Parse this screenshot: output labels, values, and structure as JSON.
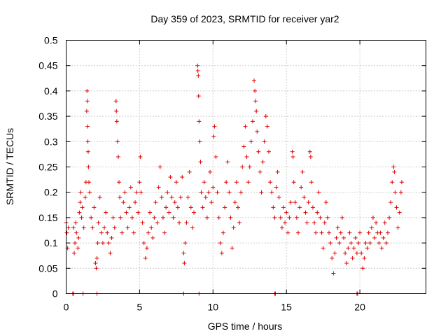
{
  "chart_data": {
    "type": "scatter",
    "title": "Day 359 of 2023, SRMTID for receiver yar2",
    "xlabel": "GPS time / hours",
    "ylabel": "SRMTID / TECUs",
    "xlim": [
      0,
      24.5
    ],
    "ylim": [
      0,
      0.5
    ],
    "x_ticks": [
      0,
      5,
      10,
      15,
      20
    ],
    "x_tick_labels": [
      "0",
      "5",
      "10",
      "15",
      "20"
    ],
    "y_ticks": [
      0,
      0.05,
      0.1,
      0.15,
      0.2,
      0.25,
      0.3,
      0.35,
      0.4,
      0.45,
      0.5
    ],
    "y_tick_labels": [
      "0",
      "0.05",
      "0.1",
      "0.15",
      "0.2",
      "0.25",
      "0.3",
      "0.35",
      "0.4",
      "0.45",
      "0.5"
    ],
    "grid": true,
    "marker": "+",
    "color": "#e00000",
    "series": [
      {
        "name": "yar2",
        "points": [
          [
            0.0,
            0.14
          ],
          [
            0.05,
            0.12
          ],
          [
            0.1,
            0.09
          ],
          [
            0.15,
            0.13
          ],
          [
            0.5,
            0.13
          ],
          [
            0.55,
            0.08
          ],
          [
            0.6,
            0.1
          ],
          [
            0.65,
            0.14
          ],
          [
            0.7,
            0.12
          ],
          [
            0.8,
            0.09
          ],
          [
            0.85,
            0.11
          ],
          [
            0.9,
            0.16
          ],
          [
            0.95,
            0.18
          ],
          [
            1.0,
            0.2
          ],
          [
            1.05,
            0.15
          ],
          [
            1.1,
            0.17
          ],
          [
            1.2,
            0.13
          ],
          [
            1.3,
            0.19
          ],
          [
            1.35,
            0.22
          ],
          [
            1.4,
            0.36
          ],
          [
            1.42,
            0.4
          ],
          [
            1.44,
            0.38
          ],
          [
            1.46,
            0.33
          ],
          [
            1.48,
            0.3
          ],
          [
            1.5,
            0.28
          ],
          [
            1.52,
            0.25
          ],
          [
            1.55,
            0.22
          ],
          [
            1.6,
            0.2
          ],
          [
            1.7,
            0.15
          ],
          [
            1.8,
            0.13
          ],
          [
            1.9,
            0.17
          ],
          [
            2.0,
            0.06
          ],
          [
            2.05,
            0.05
          ],
          [
            2.1,
            0.07
          ],
          [
            2.15,
            0.1
          ],
          [
            2.2,
            0.14
          ],
          [
            2.3,
            0.19
          ],
          [
            2.4,
            0.12
          ],
          [
            2.5,
            0.1
          ],
          [
            2.6,
            0.13
          ],
          [
            2.7,
            0.16
          ],
          [
            2.8,
            0.12
          ],
          [
            2.9,
            0.1
          ],
          [
            3.0,
            0.08
          ],
          [
            3.1,
            0.11
          ],
          [
            3.2,
            0.15
          ],
          [
            3.3,
            0.13
          ],
          [
            3.4,
            0.38
          ],
          [
            3.42,
            0.36
          ],
          [
            3.45,
            0.34
          ],
          [
            3.5,
            0.3
          ],
          [
            3.55,
            0.27
          ],
          [
            3.6,
            0.22
          ],
          [
            3.65,
            0.19
          ],
          [
            3.7,
            0.15
          ],
          [
            3.8,
            0.12
          ],
          [
            3.9,
            0.18
          ],
          [
            4.0,
            0.2
          ],
          [
            4.1,
            0.16
          ],
          [
            4.2,
            0.13
          ],
          [
            4.3,
            0.17
          ],
          [
            4.4,
            0.21
          ],
          [
            4.5,
            0.15
          ],
          [
            4.6,
            0.12
          ],
          [
            4.7,
            0.18
          ],
          [
            4.8,
            0.2
          ],
          [
            4.9,
            0.16
          ],
          [
            5.0,
            0.22
          ],
          [
            5.05,
            0.27
          ],
          [
            5.1,
            0.2
          ],
          [
            5.2,
            0.14
          ],
          [
            5.3,
            0.1
          ],
          [
            5.4,
            0.07
          ],
          [
            5.5,
            0.09
          ],
          [
            5.6,
            0.12
          ],
          [
            5.7,
            0.16
          ],
          [
            5.8,
            0.13
          ],
          [
            5.9,
            0.11
          ],
          [
            6.0,
            0.15
          ],
          [
            6.1,
            0.18
          ],
          [
            6.2,
            0.14
          ],
          [
            6.3,
            0.21
          ],
          [
            6.4,
            0.25
          ],
          [
            6.5,
            0.19
          ],
          [
            6.6,
            0.15
          ],
          [
            6.7,
            0.12
          ],
          [
            6.8,
            0.17
          ],
          [
            6.9,
            0.2
          ],
          [
            7.0,
            0.16
          ],
          [
            7.1,
            0.23
          ],
          [
            7.2,
            0.19
          ],
          [
            7.3,
            0.15
          ],
          [
            7.4,
            0.18
          ],
          [
            7.5,
            0.22
          ],
          [
            7.6,
            0.17
          ],
          [
            7.7,
            0.14
          ],
          [
            7.8,
            0.19
          ],
          [
            7.9,
            0.23
          ],
          [
            8.0,
            0.08
          ],
          [
            8.05,
            0.06
          ],
          [
            8.1,
            0.1
          ],
          [
            8.2,
            0.14
          ],
          [
            8.3,
            0.19
          ],
          [
            8.4,
            0.24
          ],
          [
            8.5,
            0.17
          ],
          [
            8.6,
            0.13
          ],
          [
            8.7,
            0.16
          ],
          [
            8.95,
            0.45
          ],
          [
            8.97,
            0.44
          ],
          [
            9.0,
            0.43
          ],
          [
            9.02,
            0.39
          ],
          [
            9.05,
            0.34
          ],
          [
            9.1,
            0.3
          ],
          [
            9.15,
            0.26
          ],
          [
            9.2,
            0.2
          ],
          [
            9.3,
            0.17
          ],
          [
            9.4,
            0.22
          ],
          [
            9.5,
            0.19
          ],
          [
            9.6,
            0.15
          ],
          [
            9.7,
            0.2
          ],
          [
            9.8,
            0.24
          ],
          [
            9.9,
            0.18
          ],
          [
            10.0,
            0.21
          ],
          [
            10.05,
            0.31
          ],
          [
            10.1,
            0.33
          ],
          [
            10.2,
            0.27
          ],
          [
            10.3,
            0.2
          ],
          [
            10.4,
            0.15
          ],
          [
            10.5,
            0.1
          ],
          [
            10.6,
            0.08
          ],
          [
            10.7,
            0.12
          ],
          [
            10.8,
            0.17
          ],
          [
            10.9,
            0.22
          ],
          [
            11.0,
            0.26
          ],
          [
            11.1,
            0.2
          ],
          [
            11.2,
            0.15
          ],
          [
            11.3,
            0.09
          ],
          [
            11.4,
            0.13
          ],
          [
            11.5,
            0.18
          ],
          [
            11.6,
            0.22
          ],
          [
            11.7,
            0.17
          ],
          [
            11.8,
            0.14
          ],
          [
            11.9,
            0.2
          ],
          [
            12.0,
            0.25
          ],
          [
            12.1,
            0.29
          ],
          [
            12.2,
            0.33
          ],
          [
            12.3,
            0.27
          ],
          [
            12.4,
            0.22
          ],
          [
            12.5,
            0.25
          ],
          [
            12.6,
            0.3
          ],
          [
            12.7,
            0.34
          ],
          [
            12.8,
            0.42
          ],
          [
            12.85,
            0.4
          ],
          [
            12.9,
            0.38
          ],
          [
            12.95,
            0.36
          ],
          [
            13.0,
            0.32
          ],
          [
            13.1,
            0.28
          ],
          [
            13.2,
            0.24
          ],
          [
            13.3,
            0.2
          ],
          [
            13.4,
            0.26
          ],
          [
            13.5,
            0.3
          ],
          [
            13.6,
            0.35
          ],
          [
            13.7,
            0.33
          ],
          [
            13.8,
            0.28
          ],
          [
            13.9,
            0.22
          ],
          [
            14.0,
            0.2
          ],
          [
            14.1,
            0.17
          ],
          [
            14.2,
            0.15
          ],
          [
            14.3,
            0.21
          ],
          [
            14.4,
            0.24
          ],
          [
            14.5,
            0.19
          ],
          [
            14.6,
            0.15
          ],
          [
            14.7,
            0.13
          ],
          [
            14.8,
            0.17
          ],
          [
            14.9,
            0.14
          ],
          [
            15.0,
            0.16
          ],
          [
            15.1,
            0.12
          ],
          [
            15.2,
            0.15
          ],
          [
            15.3,
            0.18
          ],
          [
            15.4,
            0.28
          ],
          [
            15.45,
            0.27
          ],
          [
            15.5,
            0.22
          ],
          [
            15.6,
            0.18
          ],
          [
            15.7,
            0.15
          ],
          [
            15.8,
            0.12
          ],
          [
            15.9,
            0.17
          ],
          [
            16.0,
            0.21
          ],
          [
            16.1,
            0.24
          ],
          [
            16.2,
            0.19
          ],
          [
            16.3,
            0.16
          ],
          [
            16.4,
            0.14
          ],
          [
            16.5,
            0.18
          ],
          [
            16.6,
            0.28
          ],
          [
            16.65,
            0.27
          ],
          [
            16.7,
            0.22
          ],
          [
            16.8,
            0.17
          ],
          [
            16.9,
            0.14
          ],
          [
            17.0,
            0.12
          ],
          [
            17.1,
            0.16
          ],
          [
            17.2,
            0.2
          ],
          [
            17.3,
            0.15
          ],
          [
            17.4,
            0.12
          ],
          [
            17.5,
            0.09
          ],
          [
            17.6,
            0.14
          ],
          [
            17.7,
            0.18
          ],
          [
            17.8,
            0.15
          ],
          [
            17.9,
            0.12
          ],
          [
            18.0,
            0.1
          ],
          [
            18.1,
            0.07
          ],
          [
            18.2,
            0.04
          ],
          [
            18.3,
            0.08
          ],
          [
            18.4,
            0.11
          ],
          [
            18.5,
            0.13
          ],
          [
            18.6,
            0.1
          ],
          [
            18.7,
            0.12
          ],
          [
            18.8,
            0.15
          ],
          [
            18.9,
            0.11
          ],
          [
            19.0,
            0.08
          ],
          [
            19.1,
            0.06
          ],
          [
            19.2,
            0.09
          ],
          [
            19.3,
            0.12
          ],
          [
            19.4,
            0.1
          ],
          [
            19.5,
            0.07
          ],
          [
            19.6,
            0.09
          ],
          [
            19.7,
            0.11
          ],
          [
            19.8,
            0.08
          ],
          [
            19.9,
            0.1
          ],
          [
            20.0,
            0.12
          ],
          [
            20.1,
            0.08
          ],
          [
            20.2,
            0.05
          ],
          [
            20.3,
            0.07
          ],
          [
            20.4,
            0.1
          ],
          [
            20.5,
            0.09
          ],
          [
            20.6,
            0.12
          ],
          [
            20.7,
            0.1
          ],
          [
            20.8,
            0.13
          ],
          [
            20.9,
            0.15
          ],
          [
            21.0,
            0.11
          ],
          [
            21.1,
            0.14
          ],
          [
            21.2,
            0.12
          ],
          [
            21.3,
            0.1
          ],
          [
            21.4,
            0.12
          ],
          [
            21.5,
            0.09
          ],
          [
            21.6,
            0.11
          ],
          [
            21.7,
            0.14
          ],
          [
            21.8,
            0.1
          ],
          [
            21.9,
            0.12
          ],
          [
            22.0,
            0.15
          ],
          [
            22.1,
            0.18
          ],
          [
            22.2,
            0.22
          ],
          [
            22.3,
            0.25
          ],
          [
            22.35,
            0.24
          ],
          [
            22.4,
            0.2
          ],
          [
            22.5,
            0.17
          ],
          [
            22.6,
            0.13
          ],
          [
            22.7,
            0.16
          ],
          [
            22.8,
            0.2
          ],
          [
            22.85,
            0.22
          ]
        ],
        "zero_points": [
          0.45,
          0.5,
          1.15,
          2.1,
          8.0,
          9.05,
          14.2,
          14.25,
          19.8,
          19.85
        ]
      }
    ]
  }
}
